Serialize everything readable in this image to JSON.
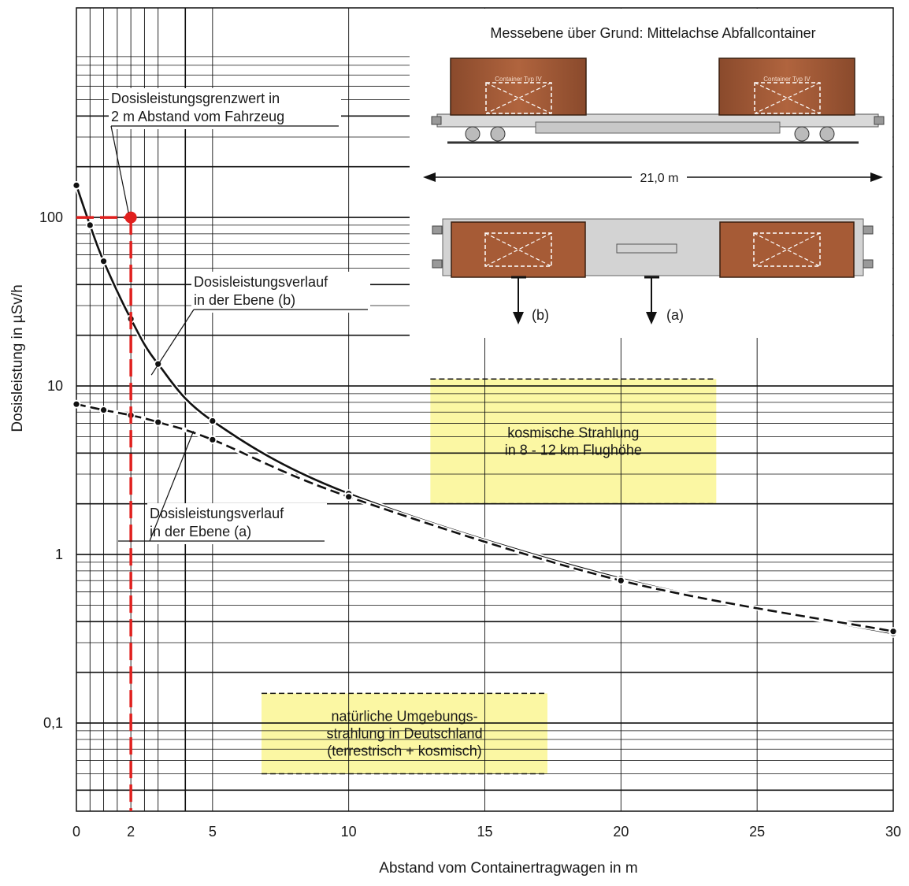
{
  "chart_data": {
    "type": "line",
    "title": "",
    "xlabel": "Abstand vom Containertragwagen in m",
    "ylabel": "Dosisleistung in µSv/h",
    "xlim": [
      0,
      30
    ],
    "ylim": [
      0.03,
      1000
    ],
    "yscale": "log",
    "grid": true,
    "x_ticks": [
      0,
      2,
      5,
      10,
      15,
      20,
      25,
      30
    ],
    "x_tick_labels": [
      "0",
      "2",
      "5",
      "10",
      "15",
      "20",
      "25",
      "30"
    ],
    "y_ticks": [
      0.1,
      1,
      10,
      100
    ],
    "y_tick_labels": [
      "0,1",
      "1",
      "10",
      "100"
    ],
    "series": [
      {
        "name": "Dosisleistungsverlauf in der Ebene (b)",
        "style": "solid",
        "x": [
          0,
          0.5,
          1,
          2,
          3,
          5,
          10,
          20,
          30
        ],
        "y": [
          155,
          90,
          55,
          25,
          13.5,
          6.2,
          2.3,
          0.72,
          0.34
        ]
      },
      {
        "name": "Dosisleistungsverlauf in der Ebene (a)",
        "style": "dashed",
        "x": [
          0,
          1,
          2,
          3,
          5,
          10,
          20,
          30
        ],
        "y": [
          7.8,
          7.2,
          6.7,
          6.1,
          4.8,
          2.2,
          0.7,
          0.35
        ]
      }
    ],
    "limit_marker": {
      "label": "Dosisleistungsgrenzwert in 2 m Abstand vom Fahrzeug",
      "label_lines": [
        "Dosisleistungsgrenzwert in",
        "2 m Abstand vom Fahrzeug"
      ],
      "x": 2,
      "y": 100,
      "color": "#e0201e"
    },
    "series_labels": [
      {
        "lines": [
          "Dosisleistungsverlauf",
          "in der Ebene (b)"
        ]
      },
      {
        "lines": [
          "Dosisleistungsverlauf",
          "in der Ebene (a)"
        ]
      }
    ],
    "regions": [
      {
        "lines": [
          "kosmische Strahlung",
          "in 8 - 12 km Flughöhe"
        ],
        "x_range": [
          13,
          23.5
        ],
        "y_range": [
          2,
          11
        ],
        "color": "#fbf7a3"
      },
      {
        "lines": [
          "natürliche Umgebungs-",
          "strahlung in Deutschland",
          "(terrestrisch + kosmisch)"
        ],
        "x_range": [
          6.8,
          17.3
        ],
        "y_range": [
          0.05,
          0.15
        ],
        "color": "#fbf7a3"
      }
    ],
    "annotations": {
      "measurement_plane": "Messebene über Grund: Mittelachse Abfallcontainer",
      "length": "21,0 m",
      "plane_a": "(a)",
      "plane_b": "(b)",
      "container_label": "Container Typ IV"
    }
  }
}
